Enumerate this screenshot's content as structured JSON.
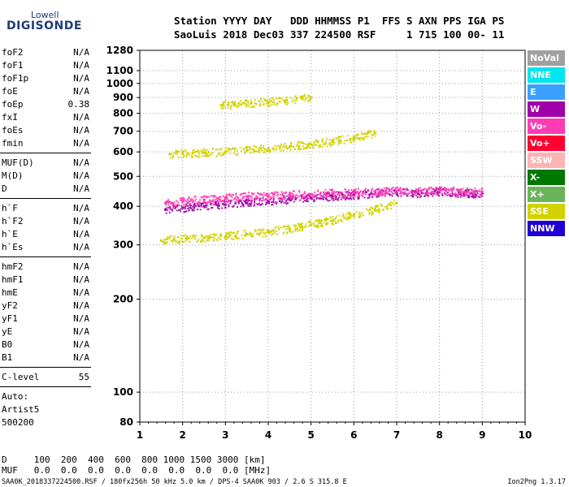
{
  "logo": {
    "top": "Lowell",
    "bottom": "DIGISONDE"
  },
  "header": {
    "line1": "Station YYYY DAY   DDD HHMMSS P1  FFS S AXN PPS IGA PS",
    "line2": "SaoLuis 2018 Dec03 337 224500 RSF     1 715 100 00- 11"
  },
  "params": {
    "group1": [
      {
        "name": "foF2",
        "value": "N/A"
      },
      {
        "name": "foF1",
        "value": "N/A"
      },
      {
        "name": "foF1p",
        "value": "N/A"
      },
      {
        "name": "foE",
        "value": "N/A"
      },
      {
        "name": "foEp",
        "value": "0.38"
      },
      {
        "name": "fxI",
        "value": "N/A"
      },
      {
        "name": "foEs",
        "value": "N/A"
      },
      {
        "name": "fmin",
        "value": "N/A"
      }
    ],
    "group2": [
      {
        "name": "MUF(D)",
        "value": "N/A"
      },
      {
        "name": "M(D)",
        "value": "N/A"
      },
      {
        "name": "D",
        "value": "N/A"
      }
    ],
    "group3": [
      {
        "name": "h`F",
        "value": "N/A"
      },
      {
        "name": "h`F2",
        "value": "N/A"
      },
      {
        "name": "h`E",
        "value": "N/A"
      },
      {
        "name": "h`Es",
        "value": "N/A"
      }
    ],
    "group4": [
      {
        "name": "hmF2",
        "value": "N/A"
      },
      {
        "name": "hmF1",
        "value": "N/A"
      },
      {
        "name": "hmE",
        "value": "N/A"
      },
      {
        "name": "yF2",
        "value": "N/A"
      },
      {
        "name": "yF1",
        "value": "N/A"
      },
      {
        "name": "yE",
        "value": "N/A"
      },
      {
        "name": "B0",
        "value": "N/A"
      },
      {
        "name": "B1",
        "value": "N/A"
      }
    ],
    "clevel": {
      "name": "C-level",
      "value": "55"
    },
    "auto": [
      "Auto:",
      "Artist5",
      "500200"
    ]
  },
  "bottom": {
    "d_row": "D     100  200  400  600  800 1000 1500 3000 [km]",
    "muf_row": "MUF   0.0  0.0  0.0  0.0  0.0  0.0  0.0  0.0 [MHz]",
    "footer_left": "SAA0K_2018337224500.RSF / 180fx256h 50 kHz 5.0 km / DPS-4 SAA0K 903 / 2.6 S 315.8 E",
    "footer_right": "Ion2Png 1.3.17"
  },
  "legend": [
    {
      "label": "NoVal",
      "color": "#a0a0a0"
    },
    {
      "label": "NNE",
      "color": "#00e5ee"
    },
    {
      "label": "E",
      "color": "#3aa0ff"
    },
    {
      "label": "W",
      "color": "#a000a8"
    },
    {
      "label": "Vo-",
      "color": "#ff3cb4"
    },
    {
      "label": "Vo+",
      "color": "#ff0030"
    },
    {
      "label": "SSW",
      "color": "#ffb4b4"
    },
    {
      "label": "X-",
      "color": "#007800"
    },
    {
      "label": "X+",
      "color": "#6cb45a"
    },
    {
      "label": "SSE",
      "color": "#d2d200"
    },
    {
      "label": "NNW",
      "color": "#1e00d2"
    }
  ],
  "chart_data": {
    "type": "scatter",
    "title": "",
    "xlabel": "",
    "ylabel": "",
    "x_scale": "linear",
    "y_scale": "log",
    "xlim": [
      1,
      10
    ],
    "ylim": [
      80,
      1280
    ],
    "x_ticks": [
      "1",
      "2",
      "3",
      "4",
      "5",
      "6",
      "7",
      "8",
      "9",
      "10"
    ],
    "y_ticks": [
      "80",
      "100",
      "200",
      "300",
      "400",
      "500",
      "600",
      "700",
      "800",
      "900",
      "1000",
      "1100",
      "1280"
    ],
    "grid": "dotted",
    "legend_position": "right",
    "series": [
      {
        "name": "SSE",
        "color": "#d2d200",
        "traces": [
          {
            "x": [
              1.5,
              1.8,
              2.1,
              2.5,
              3.0,
              3.5,
              4.0,
              4.5,
              5.0,
              5.5,
              6.0,
              6.5,
              7.0
            ],
            "y": [
              310,
              312,
              314,
              316,
              320,
              325,
              330,
              338,
              348,
              360,
              375,
              390,
              410
            ]
          },
          {
            "x": [
              1.7,
              2.0,
              2.5,
              3.0,
              3.5,
              4.0,
              4.5,
              5.0,
              5.5,
              6.0,
              6.5
            ],
            "y": [
              590,
              592,
              596,
              600,
              608,
              616,
              625,
              635,
              648,
              665,
              690
            ]
          },
          {
            "x": [
              2.9,
              3.2,
              3.6,
              4.0,
              4.4,
              4.8,
              5.0
            ],
            "y": [
              850,
              855,
              862,
              870,
              880,
              890,
              900
            ]
          }
        ]
      },
      {
        "name": "W",
        "color": "#a000a8",
        "traces": [
          {
            "x": [
              1.6,
              2.0,
              2.5,
              3.0,
              3.5,
              4.0,
              4.5,
              5.0,
              5.5,
              6.0,
              6.5,
              7.0,
              7.5,
              8.0,
              8.5,
              9.0
            ],
            "y": [
              390,
              395,
              400,
              405,
              410,
              415,
              420,
              425,
              430,
              435,
              440,
              445,
              440,
              445,
              440,
              440
            ]
          }
        ]
      },
      {
        "name": "Vo-",
        "color": "#ff3cb4",
        "traces": [
          {
            "x": [
              1.6,
              2.0,
              2.5,
              3.0,
              3.5,
              4.0,
              4.5,
              5.0,
              5.5,
              6.0,
              6.5,
              7.0,
              7.5,
              8.0,
              8.5,
              9.0
            ],
            "y": [
              410,
              415,
              420,
              425,
              430,
              432,
              435,
              438,
              440,
              442,
              445,
              448,
              445,
              450,
              445,
              445
            ]
          }
        ]
      }
    ]
  }
}
